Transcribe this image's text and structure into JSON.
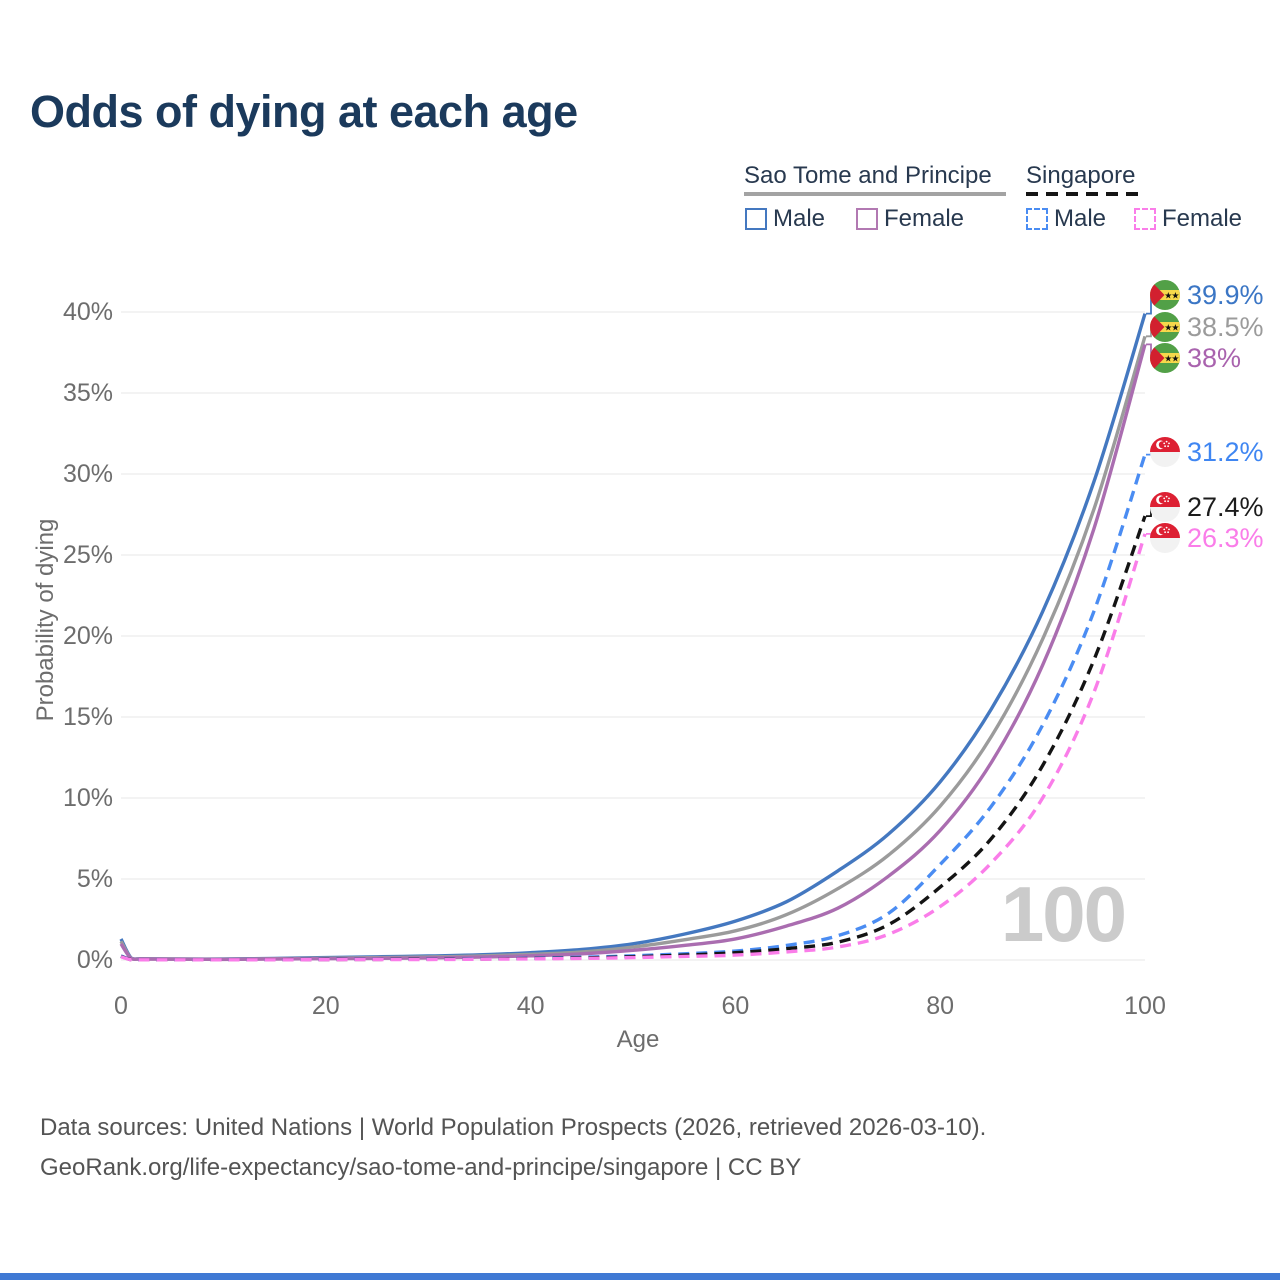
{
  "title": "Odds of dying at each age",
  "legend": {
    "groups": [
      {
        "label": "Sao Tome and Principe",
        "underline_color": "#a3a3a3",
        "underline_style": "solid",
        "items": [
          {
            "label": "Male",
            "color": "#4478c0",
            "border_style": "solid"
          },
          {
            "label": "Female",
            "color": "#b279b2",
            "border_style": "solid"
          }
        ]
      },
      {
        "label": "Singapore",
        "underline_color": "#151515",
        "underline_style": "dashed",
        "items": [
          {
            "label": "Male",
            "color": "#4a8cf2",
            "border_style": "dashed"
          },
          {
            "label": "Female",
            "color": "#fa7de9",
            "border_style": "dashed"
          }
        ]
      }
    ]
  },
  "chart_data": {
    "type": "line",
    "title": "Odds of dying at each age",
    "xlabel": "Age",
    "ylabel": "Probability of dying",
    "xlim": [
      0,
      100
    ],
    "ylim": [
      0,
      42
    ],
    "x_ticks": [
      0,
      20,
      40,
      60,
      80,
      100
    ],
    "y_ticks": [
      0,
      5,
      10,
      15,
      20,
      25,
      30,
      35,
      40
    ],
    "y_tick_suffix": "%",
    "grid": "horizontal",
    "legend_position": "top-right",
    "annotation": "100",
    "x": [
      0,
      1,
      2,
      5,
      10,
      15,
      20,
      25,
      30,
      35,
      40,
      45,
      50,
      55,
      60,
      65,
      70,
      75,
      80,
      85,
      90,
      95,
      100
    ],
    "series": [
      {
        "name": "Sao Tome and Principe — Male",
        "color": "#4478c0",
        "line_style": "solid",
        "end_label": "39.9%",
        "values": [
          1.3,
          0.12,
          0.08,
          0.07,
          0.06,
          0.1,
          0.15,
          0.2,
          0.25,
          0.32,
          0.45,
          0.65,
          1.0,
          1.6,
          2.4,
          3.6,
          5.5,
          7.8,
          11.0,
          15.5,
          21.5,
          29.5,
          39.9
        ]
      },
      {
        "name": "Sao Tome and Principe — Both sexes",
        "color": "#9b9b9b",
        "line_style": "solid",
        "end_label": "38.5%",
        "values": [
          1.15,
          0.1,
          0.07,
          0.06,
          0.05,
          0.08,
          0.11,
          0.15,
          0.19,
          0.25,
          0.35,
          0.5,
          0.8,
          1.25,
          1.8,
          2.8,
          4.4,
          6.5,
          9.5,
          13.8,
          19.8,
          27.8,
          38.5
        ]
      },
      {
        "name": "Sao Tome and Principe — Female",
        "color": "#aa6db0",
        "line_style": "solid",
        "end_label": "38%",
        "values": [
          1.0,
          0.09,
          0.06,
          0.05,
          0.04,
          0.06,
          0.08,
          0.1,
          0.13,
          0.18,
          0.26,
          0.38,
          0.6,
          0.9,
          1.3,
          2.1,
          3.2,
          5.2,
          8.0,
          12.2,
          18.2,
          26.6,
          38.0
        ]
      },
      {
        "name": "Singapore — Male",
        "color": "#4a8cf2",
        "line_style": "dashed",
        "end_label": "31.2%",
        "values": [
          0.25,
          0.02,
          0.01,
          0.01,
          0.01,
          0.02,
          0.04,
          0.05,
          0.06,
          0.08,
          0.11,
          0.17,
          0.26,
          0.38,
          0.55,
          0.9,
          1.5,
          2.9,
          5.9,
          9.5,
          14.5,
          21.5,
          31.2
        ]
      },
      {
        "name": "Singapore — Both sexes",
        "color": "#141414",
        "line_style": "dashed",
        "end_label": "27.4%",
        "values": [
          0.22,
          0.02,
          0.01,
          0.01,
          0.01,
          0.02,
          0.03,
          0.04,
          0.05,
          0.06,
          0.09,
          0.13,
          0.2,
          0.3,
          0.45,
          0.7,
          1.1,
          2.2,
          4.5,
          7.5,
          12.0,
          18.5,
          27.4
        ]
      },
      {
        "name": "Singapore — Female",
        "color": "#fa7de9",
        "line_style": "dashed",
        "end_label": "26.3%",
        "values": [
          0.2,
          0.01,
          0.01,
          0.01,
          0.01,
          0.01,
          0.02,
          0.03,
          0.03,
          0.05,
          0.07,
          0.1,
          0.15,
          0.22,
          0.3,
          0.5,
          0.8,
          1.6,
          3.3,
          6.0,
          10.0,
          16.5,
          26.3
        ]
      }
    ]
  },
  "end_labels": [
    {
      "value": "39.9%",
      "color": "#3b76c5",
      "flag": "sao-tome-and-principe"
    },
    {
      "value": "38.5%",
      "color": "#9b9b9b",
      "flag": "sao-tome-and-principe"
    },
    {
      "value": "38%",
      "color": "#a963ae",
      "flag": "sao-tome-and-principe"
    },
    {
      "value": "31.2%",
      "color": "#3f86f2",
      "flag": "singapore"
    },
    {
      "value": "27.4%",
      "color": "#1c1c1c",
      "flag": "singapore"
    },
    {
      "value": "26.3%",
      "color": "#fa7de9",
      "flag": "singapore"
    }
  ],
  "footer": {
    "line1": "Data sources: United Nations | World Population Prospects (2026, retrieved 2026-03-10).",
    "line2": "GeoRank.org/life-expectancy/sao-tome-and-principe/singapore | CC BY"
  }
}
